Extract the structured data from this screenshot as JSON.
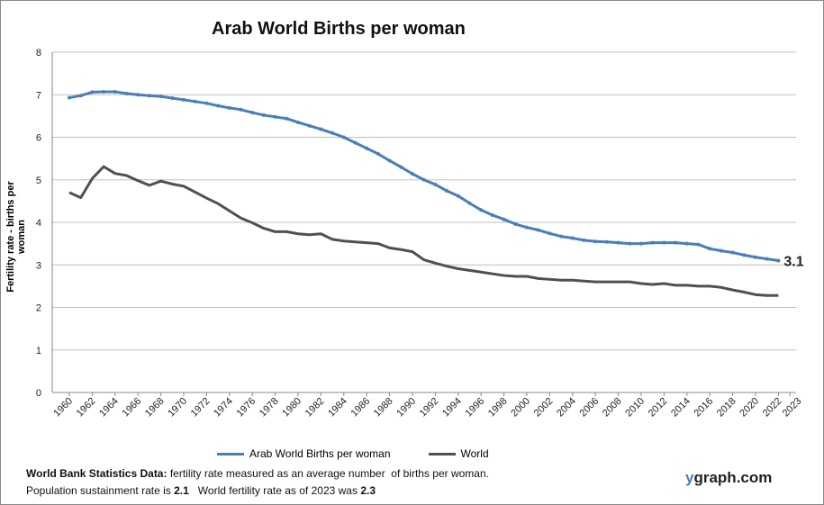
{
  "chart_data": {
    "type": "line",
    "title": "Arab World Births per woman",
    "ylabel": "Fertility rate  - births per woman",
    "xlabel": "",
    "ylim": [
      0,
      8
    ],
    "yticks": [
      0,
      1,
      2,
      3,
      4,
      5,
      6,
      7,
      8
    ],
    "xlim": [
      1960,
      2023
    ],
    "xticks": [
      "1960",
      "1962",
      "1964",
      "1966",
      "1968",
      "1970",
      "1972",
      "1974",
      "1976",
      "1978",
      "1980",
      "1982",
      "1984",
      "1986",
      "1988",
      "1990",
      "1992",
      "1994",
      "1996",
      "1998",
      "2000",
      "2002",
      "2004",
      "2006",
      "2008",
      "2010",
      "2012",
      "2014",
      "2016",
      "2018",
      "2020",
      "2022",
      "2023"
    ],
    "grid": true,
    "legend": "bottom",
    "x_start": 1960,
    "series": [
      {
        "name": "Arab World Births per woman",
        "color": "#4a7ebb",
        "markers": true,
        "values": [
          6.93,
          6.98,
          7.06,
          7.07,
          7.07,
          7.03,
          7.0,
          6.98,
          6.96,
          6.92,
          6.88,
          6.84,
          6.8,
          6.74,
          6.69,
          6.65,
          6.58,
          6.52,
          6.48,
          6.44,
          6.35,
          6.27,
          6.19,
          6.1,
          6.0,
          5.87,
          5.74,
          5.61,
          5.45,
          5.3,
          5.14,
          5.0,
          4.89,
          4.74,
          4.62,
          4.45,
          4.29,
          4.17,
          4.07,
          3.96,
          3.88,
          3.82,
          3.74,
          3.67,
          3.63,
          3.58,
          3.55,
          3.54,
          3.52,
          3.5,
          3.5,
          3.52,
          3.52,
          3.52,
          3.5,
          3.48,
          3.38,
          3.33,
          3.29,
          3.23,
          3.18,
          3.14,
          3.1
        ]
      },
      {
        "name": "World",
        "color": "#505050",
        "markers": false,
        "values": [
          4.7,
          4.58,
          5.03,
          5.31,
          5.15,
          5.1,
          4.98,
          4.87,
          4.97,
          4.9,
          4.85,
          4.71,
          4.57,
          4.44,
          4.27,
          4.1,
          3.99,
          3.86,
          3.78,
          3.78,
          3.73,
          3.71,
          3.73,
          3.6,
          3.56,
          3.54,
          3.52,
          3.5,
          3.4,
          3.36,
          3.31,
          3.12,
          3.04,
          2.97,
          2.91,
          2.87,
          2.83,
          2.79,
          2.75,
          2.73,
          2.73,
          2.68,
          2.66,
          2.64,
          2.64,
          2.62,
          2.6,
          2.6,
          2.6,
          2.6,
          2.56,
          2.54,
          2.56,
          2.52,
          2.52,
          2.5,
          2.5,
          2.47,
          2.41,
          2.36,
          2.3,
          2.28,
          2.28
        ]
      }
    ],
    "annotation": "3.1"
  },
  "footer": {
    "line1_bold": "World Bank Statistics Data:",
    "line1": " fertility rate measured as an average number  of births per woman.",
    "line2_a": "Population sustainment rate is ",
    "line2_b": "2.1",
    "line2_c": "   World fertility rate as of 2023 was ",
    "line2_d": "2.3"
  },
  "brand": {
    "y": "y",
    "rest": "graph.com"
  }
}
